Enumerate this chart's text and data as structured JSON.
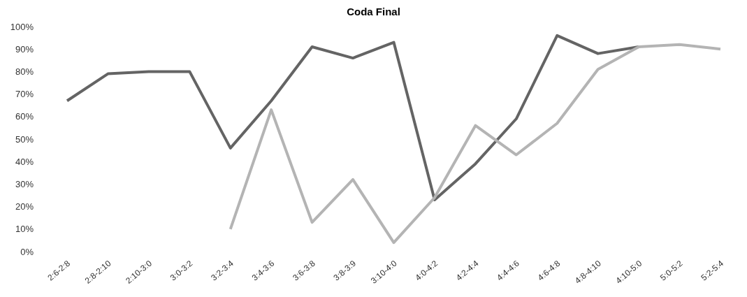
{
  "chart_data": {
    "type": "line",
    "title": "Coda Final",
    "categories": [
      "2:6-2:8",
      "2:8-2:10",
      "2:10-3:0",
      "3:0-3:2",
      "3:2-3:4",
      "3:4-3:6",
      "3:6-3:8",
      "3:8-3:9",
      "3:10-4:0",
      "4:0-4:2",
      "4:2-4:4",
      "4:4-4:6",
      "4:6-4:8",
      "4:8-4:10",
      "4:10-5:0",
      "5:0-5:2",
      "5:2-5:4"
    ],
    "series": [
      {
        "color": "#646464",
        "values": [
          67,
          79,
          80,
          80,
          46,
          67,
          91,
          86,
          93,
          23,
          39,
          59,
          96,
          88,
          91,
          null,
          null
        ]
      },
      {
        "color": "#b4b4b4",
        "values": [
          null,
          null,
          null,
          null,
          10,
          63,
          13,
          32,
          4,
          24,
          56,
          43,
          57,
          81,
          91,
          92,
          90
        ]
      }
    ],
    "ylim": [
      0,
      100
    ],
    "yticks": [
      {
        "value": 0,
        "label": "0%"
      },
      {
        "value": 10,
        "label": "10%"
      },
      {
        "value": 20,
        "label": "20%"
      },
      {
        "value": 30,
        "label": "30%"
      },
      {
        "value": 40,
        "label": "40%"
      },
      {
        "value": 50,
        "label": "50%"
      },
      {
        "value": 60,
        "label": "60%"
      },
      {
        "value": 70,
        "label": "70%"
      },
      {
        "value": 80,
        "label": "80%"
      },
      {
        "value": 90,
        "label": "90%"
      },
      {
        "value": 100,
        "label": "100%"
      }
    ],
    "grid": false,
    "marker": "none",
    "line_style": "solid"
  }
}
